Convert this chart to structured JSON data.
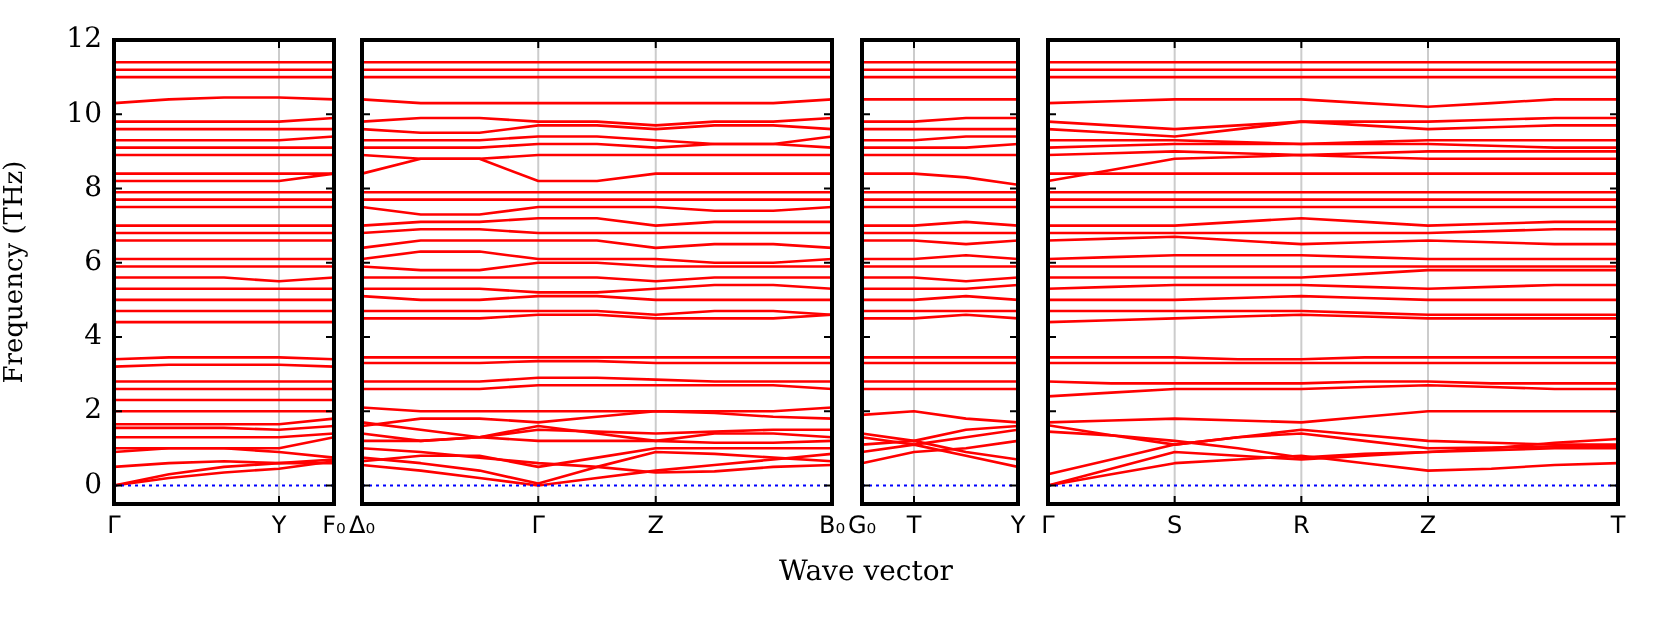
{
  "chart_data": [
    {
      "type": "line",
      "ylabel": "Frequency (THz)",
      "color": "#ff0000",
      "marker": "none",
      "line_style": "solid",
      "legend": false,
      "categories": [
        "Γ",
        null,
        null,
        "Y",
        "F₀"
      ],
      "ylim": [
        -0.5,
        12
      ],
      "yticks": [
        0,
        2,
        4,
        6,
        8,
        10,
        12
      ],
      "ref_lines": [
        {
          "axis": "y",
          "value": 0,
          "color": "#0000ff",
          "line_style": "dotted"
        },
        {
          "axis": "x",
          "value": "Y",
          "color": "#cccccc",
          "line_style": "solid"
        }
      ],
      "series": [
        {
          "values": [
            0,
            0.2,
            0.35,
            0.45,
            0.65
          ]
        },
        {
          "values": [
            0,
            0.3,
            0.5,
            0.6,
            0.7
          ]
        },
        {
          "values": [
            0.5,
            0.6,
            0.65,
            0.6,
            0.6
          ]
        },
        {
          "values": [
            0.9,
            1.0,
            1.0,
            0.9,
            0.75
          ]
        },
        {
          "values": [
            1.0,
            1.0,
            1.0,
            1.0,
            1.3
          ]
        },
        {
          "values": [
            1.3,
            1.3,
            1.3,
            1.3,
            1.4
          ]
        },
        {
          "values": [
            1.55,
            1.55,
            1.55,
            1.5,
            1.6
          ]
        },
        {
          "values": [
            1.65,
            1.65,
            1.65,
            1.65,
            1.8
          ]
        },
        {
          "values": [
            2.0,
            2.0,
            2.0,
            2.0,
            2.0
          ]
        },
        {
          "values": [
            2.3,
            2.3,
            2.3,
            2.3,
            2.3
          ]
        },
        {
          "values": [
            2.6,
            2.6,
            2.6,
            2.6,
            2.6
          ]
        },
        {
          "values": [
            2.8,
            2.8,
            2.8,
            2.8,
            2.8
          ]
        },
        {
          "values": [
            3.2,
            3.25,
            3.25,
            3.25,
            3.2
          ]
        },
        {
          "values": [
            3.4,
            3.45,
            3.45,
            3.45,
            3.4
          ]
        },
        {
          "values": [
            4.4,
            4.4,
            4.4,
            4.4,
            4.4
          ]
        },
        {
          "values": [
            4.7,
            4.7,
            4.7,
            4.7,
            4.7
          ]
        },
        {
          "values": [
            5.0,
            5.0,
            5.0,
            5.0,
            5.0
          ]
        },
        {
          "values": [
            5.3,
            5.3,
            5.3,
            5.3,
            5.3
          ]
        },
        {
          "values": [
            5.6,
            5.6,
            5.6,
            5.5,
            5.6
          ]
        },
        {
          "values": [
            5.9,
            5.9,
            5.9,
            5.9,
            5.9
          ]
        },
        {
          "values": [
            6.1,
            6.1,
            6.1,
            6.1,
            6.1
          ]
        },
        {
          "values": [
            6.6,
            6.6,
            6.6,
            6.6,
            6.6
          ]
        },
        {
          "values": [
            6.8,
            6.8,
            6.8,
            6.8,
            6.8
          ]
        },
        {
          "values": [
            7.0,
            7.0,
            7.0,
            7.0,
            7.0
          ]
        },
        {
          "values": [
            7.5,
            7.5,
            7.5,
            7.5,
            7.5
          ]
        },
        {
          "values": [
            7.7,
            7.7,
            7.7,
            7.7,
            7.7
          ]
        },
        {
          "values": [
            7.9,
            7.9,
            7.9,
            7.9,
            7.9
          ]
        },
        {
          "values": [
            8.2,
            8.2,
            8.2,
            8.2,
            8.4
          ]
        },
        {
          "values": [
            8.4,
            8.4,
            8.4,
            8.4,
            8.4
          ]
        },
        {
          "values": [
            8.9,
            8.9,
            8.9,
            8.9,
            8.9
          ]
        },
        {
          "values": [
            9.1,
            9.1,
            9.1,
            9.1,
            9.1
          ]
        },
        {
          "values": [
            9.3,
            9.3,
            9.3,
            9.3,
            9.4
          ]
        },
        {
          "values": [
            9.6,
            9.6,
            9.6,
            9.6,
            9.6
          ]
        },
        {
          "values": [
            9.8,
            9.8,
            9.8,
            9.8,
            9.9
          ]
        },
        {
          "values": [
            10.3,
            10.4,
            10.45,
            10.45,
            10.4
          ]
        },
        {
          "values": [
            11.0,
            11.0,
            11.0,
            11.0,
            11.0
          ]
        },
        {
          "values": [
            11.2,
            11.2,
            11.2,
            11.2,
            11.2
          ]
        },
        {
          "values": [
            11.4,
            11.4,
            11.4,
            11.4,
            11.4
          ]
        }
      ]
    },
    {
      "type": "line",
      "color": "#ff0000",
      "marker": "none",
      "line_style": "solid",
      "legend": false,
      "tick_labels": "x",
      "categories": [
        "Δ₀",
        null,
        null,
        "Γ",
        null,
        "Z",
        null,
        null,
        "B₀"
      ],
      "ylim": [
        -0.5,
        12
      ],
      "yticks": [
        0,
        2,
        4,
        6,
        8,
        10,
        12
      ],
      "ref_lines": [
        {
          "axis": "y",
          "value": 0,
          "color": "#0000ff",
          "line_style": "dotted"
        },
        {
          "axis": "x",
          "value": "Γ",
          "color": "#cccccc",
          "line_style": "solid"
        },
        {
          "axis": "x",
          "value": "Z",
          "color": "#cccccc",
          "line_style": "solid"
        }
      ],
      "series": [
        {
          "values": [
            0.55,
            0.4,
            0.2,
            0,
            0.2,
            0.4,
            0.55,
            0.7,
            0.85
          ]
        },
        {
          "values": [
            0.75,
            0.6,
            0.4,
            0.05,
            0.5,
            0.9,
            0.85,
            0.75,
            0.65
          ]
        },
        {
          "values": [
            0.65,
            0.8,
            0.8,
            0.5,
            0.75,
            1.0,
            1.0,
            1.0,
            1.0
          ]
        },
        {
          "values": [
            1.0,
            0.9,
            0.75,
            0.6,
            0.5,
            0.35,
            0.38,
            0.5,
            0.55
          ]
        },
        {
          "values": [
            1.4,
            1.2,
            1.3,
            1.6,
            1.4,
            1.2,
            1.4,
            1.4,
            1.3
          ]
        },
        {
          "values": [
            1.2,
            1.2,
            1.3,
            1.5,
            1.45,
            1.4,
            1.45,
            1.5,
            1.5
          ]
        },
        {
          "values": [
            1.7,
            1.5,
            1.3,
            1.2,
            1.2,
            1.2,
            1.15,
            1.15,
            1.2
          ]
        },
        {
          "values": [
            1.6,
            1.8,
            1.8,
            1.7,
            1.85,
            2.0,
            1.95,
            1.85,
            1.8
          ]
        },
        {
          "values": [
            2.1,
            2.0,
            2.0,
            2.0,
            2.0,
            2.0,
            2.0,
            2.0,
            2.1
          ]
        },
        {
          "values": [
            2.6,
            2.6,
            2.6,
            2.7,
            2.7,
            2.7,
            2.7,
            2.7,
            2.6
          ]
        },
        {
          "values": [
            2.8,
            2.8,
            2.8,
            2.9,
            2.9,
            2.85,
            2.8,
            2.8,
            2.8
          ]
        },
        {
          "values": [
            3.3,
            3.3,
            3.3,
            3.35,
            3.35,
            3.3,
            3.3,
            3.3,
            3.3
          ]
        },
        {
          "values": [
            3.45,
            3.45,
            3.45,
            3.45,
            3.45,
            3.45,
            3.45,
            3.45,
            3.45
          ]
        },
        {
          "values": [
            4.5,
            4.5,
            4.5,
            4.6,
            4.6,
            4.5,
            4.5,
            4.5,
            4.6
          ]
        },
        {
          "values": [
            4.7,
            4.7,
            4.7,
            4.7,
            4.7,
            4.6,
            4.7,
            4.7,
            4.6
          ]
        },
        {
          "values": [
            5.1,
            5.0,
            5.0,
            5.1,
            5.1,
            5.0,
            5.0,
            5.0,
            5.0
          ]
        },
        {
          "values": [
            5.3,
            5.3,
            5.3,
            5.2,
            5.2,
            5.3,
            5.4,
            5.4,
            5.3
          ]
        },
        {
          "values": [
            5.6,
            5.6,
            5.6,
            5.6,
            5.6,
            5.5,
            5.6,
            5.6,
            5.6
          ]
        },
        {
          "values": [
            5.9,
            5.8,
            5.8,
            6.0,
            6.0,
            5.9,
            5.9,
            5.9,
            5.9
          ]
        },
        {
          "values": [
            6.1,
            6.3,
            6.3,
            6.1,
            6.1,
            6.1,
            6.0,
            6.0,
            6.1
          ]
        },
        {
          "values": [
            6.4,
            6.6,
            6.6,
            6.6,
            6.6,
            6.4,
            6.5,
            6.5,
            6.4
          ]
        },
        {
          "values": [
            6.8,
            6.9,
            6.9,
            6.8,
            6.8,
            6.8,
            6.8,
            6.8,
            6.8
          ]
        },
        {
          "values": [
            7.0,
            7.1,
            7.1,
            7.2,
            7.2,
            7.0,
            7.1,
            7.1,
            7.1
          ]
        },
        {
          "values": [
            7.5,
            7.3,
            7.3,
            7.5,
            7.5,
            7.5,
            7.4,
            7.4,
            7.5
          ]
        },
        {
          "values": [
            7.7,
            7.7,
            7.7,
            7.7,
            7.7,
            7.7,
            7.7,
            7.7,
            7.7
          ]
        },
        {
          "values": [
            7.9,
            7.9,
            7.9,
            7.9,
            7.9,
            7.9,
            7.9,
            7.9,
            7.9
          ]
        },
        {
          "values": [
            8.4,
            8.8,
            8.8,
            8.2,
            8.2,
            8.4,
            8.4,
            8.4,
            8.4
          ]
        },
        {
          "values": [
            8.9,
            8.8,
            8.8,
            8.9,
            8.9,
            8.9,
            8.9,
            8.9,
            8.9
          ]
        },
        {
          "values": [
            9.1,
            9.1,
            9.1,
            9.2,
            9.2,
            9.1,
            9.2,
            9.2,
            9.1
          ]
        },
        {
          "values": [
            9.3,
            9.3,
            9.3,
            9.4,
            9.4,
            9.3,
            9.2,
            9.2,
            9.4
          ]
        },
        {
          "values": [
            9.6,
            9.5,
            9.5,
            9.7,
            9.7,
            9.6,
            9.7,
            9.7,
            9.6
          ]
        },
        {
          "values": [
            9.8,
            9.9,
            9.9,
            9.8,
            9.8,
            9.7,
            9.8,
            9.8,
            9.9
          ]
        },
        {
          "values": [
            10.4,
            10.3,
            10.3,
            10.3,
            10.3,
            10.3,
            10.3,
            10.3,
            10.4
          ]
        },
        {
          "values": [
            11.0,
            11.0,
            11.0,
            11.0,
            11.0,
            11.0,
            11.0,
            11.0,
            11.0
          ]
        },
        {
          "values": [
            11.2,
            11.2,
            11.2,
            11.2,
            11.2,
            11.2,
            11.2,
            11.2,
            11.2
          ]
        },
        {
          "values": [
            11.4,
            11.4,
            11.4,
            11.4,
            11.4,
            11.4,
            11.4,
            11.4,
            11.4
          ]
        }
      ]
    },
    {
      "type": "line",
      "xlabel": "Wave vector",
      "color": "#ff0000",
      "marker": "none",
      "line_style": "solid",
      "legend": false,
      "tick_labels": "x",
      "categories": [
        "G₀",
        "T",
        null,
        "Y"
      ],
      "ylim": [
        -0.5,
        12
      ],
      "yticks": [
        0,
        2,
        4,
        6,
        8,
        10,
        12
      ],
      "ref_lines": [
        {
          "axis": "y",
          "value": 0,
          "color": "#0000ff",
          "line_style": "dotted"
        },
        {
          "axis": "x",
          "value": "T",
          "color": "#cccccc",
          "line_style": "solid"
        }
      ],
      "series": [
        {
          "values": [
            0.9,
            1.1,
            0.8,
            0.5
          ]
        },
        {
          "values": [
            1.1,
            1.2,
            0.9,
            0.7
          ]
        },
        {
          "values": [
            1.3,
            1.1,
            1.3,
            1.5
          ]
        },
        {
          "values": [
            1.4,
            1.2,
            1.5,
            1.6
          ]
        },
        {
          "values": [
            0.6,
            0.9,
            1.0,
            1.2
          ]
        },
        {
          "values": [
            1.9,
            2.0,
            1.8,
            1.7
          ]
        },
        {
          "values": [
            2.6,
            2.6,
            2.6,
            2.6
          ]
        },
        {
          "values": [
            2.8,
            2.8,
            2.8,
            2.8
          ]
        },
        {
          "values": [
            3.3,
            3.3,
            3.3,
            3.3
          ]
        },
        {
          "values": [
            3.45,
            3.45,
            3.45,
            3.45
          ]
        },
        {
          "values": [
            4.5,
            4.5,
            4.6,
            4.5
          ]
        },
        {
          "values": [
            4.7,
            4.7,
            4.7,
            4.7
          ]
        },
        {
          "values": [
            5.0,
            5.0,
            5.1,
            5.0
          ]
        },
        {
          "values": [
            5.3,
            5.3,
            5.3,
            5.4
          ]
        },
        {
          "values": [
            5.6,
            5.6,
            5.5,
            5.6
          ]
        },
        {
          "values": [
            5.9,
            5.9,
            5.9,
            5.9
          ]
        },
        {
          "values": [
            6.1,
            6.1,
            6.2,
            6.1
          ]
        },
        {
          "values": [
            6.6,
            6.6,
            6.5,
            6.6
          ]
        },
        {
          "values": [
            6.8,
            6.8,
            6.8,
            6.8
          ]
        },
        {
          "values": [
            7.0,
            7.0,
            7.1,
            7.0
          ]
        },
        {
          "values": [
            7.5,
            7.5,
            7.5,
            7.5
          ]
        },
        {
          "values": [
            7.7,
            7.7,
            7.7,
            7.7
          ]
        },
        {
          "values": [
            7.9,
            7.9,
            7.9,
            7.9
          ]
        },
        {
          "values": [
            8.4,
            8.4,
            8.3,
            8.1
          ]
        },
        {
          "values": [
            8.9,
            8.9,
            8.9,
            8.9
          ]
        },
        {
          "values": [
            9.1,
            9.1,
            9.1,
            9.2
          ]
        },
        {
          "values": [
            9.3,
            9.3,
            9.4,
            9.4
          ]
        },
        {
          "values": [
            9.6,
            9.6,
            9.6,
            9.6
          ]
        },
        {
          "values": [
            9.8,
            9.8,
            9.9,
            9.9
          ]
        },
        {
          "values": [
            10.4,
            10.4,
            10.4,
            10.4
          ]
        },
        {
          "values": [
            11.0,
            11.0,
            11.0,
            11.0
          ]
        },
        {
          "values": [
            11.2,
            11.2,
            11.2,
            11.2
          ]
        },
        {
          "values": [
            11.4,
            11.4,
            11.4,
            11.4
          ]
        }
      ]
    },
    {
      "type": "line",
      "color": "#ff0000",
      "marker": "none",
      "line_style": "solid",
      "legend": false,
      "tick_labels": "x",
      "categories": [
        "Γ",
        null,
        "S",
        null,
        "R",
        null,
        "Z",
        null,
        null,
        "T"
      ],
      "ylim": [
        -0.5,
        12
      ],
      "yticks": [
        0,
        2,
        4,
        6,
        8,
        10,
        12
      ],
      "ref_lines": [
        {
          "axis": "y",
          "value": 0,
          "color": "#0000ff",
          "line_style": "dotted"
        },
        {
          "axis": "x",
          "value": "S",
          "color": "#cccccc",
          "line_style": "solid"
        },
        {
          "axis": "x",
          "value": "R",
          "color": "#cccccc",
          "line_style": "solid"
        },
        {
          "axis": "x",
          "value": "Z",
          "color": "#cccccc",
          "line_style": "solid"
        }
      ],
      "series": [
        {
          "values": [
            0,
            0.3,
            0.6,
            0.7,
            0.8,
            0.6,
            0.4,
            0.45,
            0.55,
            0.6
          ]
        },
        {
          "values": [
            0,
            0.45,
            0.9,
            0.8,
            0.7,
            0.8,
            0.9,
            0.95,
            1.0,
            1.0
          ]
        },
        {
          "values": [
            0.3,
            0.7,
            1.1,
            1.3,
            1.4,
            1.2,
            1.0,
            1.02,
            1.05,
            1.05
          ]
        },
        {
          "values": [
            1.45,
            1.35,
            1.2,
            1.0,
            0.75,
            0.85,
            0.9,
            1.0,
            1.15,
            1.25
          ]
        },
        {
          "values": [
            1.62,
            1.35,
            1.1,
            1.3,
            1.5,
            1.35,
            1.2,
            1.15,
            1.1,
            1.1
          ]
        },
        {
          "values": [
            1.7,
            1.75,
            1.8,
            1.75,
            1.7,
            1.85,
            2.0,
            2.0,
            2.0,
            2.0
          ]
        },
        {
          "values": [
            2.4,
            2.5,
            2.6,
            2.6,
            2.6,
            2.65,
            2.7,
            2.65,
            2.6,
            2.6
          ]
        },
        {
          "values": [
            2.8,
            2.75,
            2.75,
            2.75,
            2.75,
            2.8,
            2.8,
            2.75,
            2.75,
            2.75
          ]
        },
        {
          "values": [
            3.3,
            3.3,
            3.3,
            3.3,
            3.3,
            3.3,
            3.3,
            3.3,
            3.3,
            3.3
          ]
        },
        {
          "values": [
            3.45,
            3.45,
            3.45,
            3.4,
            3.4,
            3.45,
            3.45,
            3.45,
            3.45,
            3.45
          ]
        },
        {
          "values": [
            4.4,
            4.45,
            4.5,
            4.55,
            4.6,
            4.55,
            4.5,
            4.5,
            4.5,
            4.5
          ]
        },
        {
          "values": [
            4.7,
            4.7,
            4.7,
            4.7,
            4.7,
            4.65,
            4.6,
            4.6,
            4.6,
            4.6
          ]
        },
        {
          "values": [
            5.0,
            5.0,
            5.0,
            5.05,
            5.1,
            5.05,
            5.0,
            5.0,
            5.0,
            5.0
          ]
        },
        {
          "values": [
            5.3,
            5.35,
            5.4,
            5.4,
            5.4,
            5.35,
            5.3,
            5.35,
            5.4,
            5.4
          ]
        },
        {
          "values": [
            5.6,
            5.6,
            5.6,
            5.6,
            5.6,
            5.7,
            5.8,
            5.8,
            5.8,
            5.8
          ]
        },
        {
          "values": [
            5.9,
            5.9,
            5.9,
            5.9,
            5.9,
            5.9,
            5.9,
            5.9,
            5.9,
            5.9
          ]
        },
        {
          "values": [
            6.1,
            6.15,
            6.2,
            6.2,
            6.2,
            6.15,
            6.1,
            6.1,
            6.1,
            6.1
          ]
        },
        {
          "values": [
            6.6,
            6.65,
            6.7,
            6.6,
            6.5,
            6.55,
            6.6,
            6.55,
            6.5,
            6.5
          ]
        },
        {
          "values": [
            6.8,
            6.8,
            6.8,
            6.8,
            6.8,
            6.8,
            6.8,
            6.85,
            6.9,
            6.9
          ]
        },
        {
          "values": [
            7.0,
            7.0,
            7.0,
            7.1,
            7.2,
            7.1,
            7.0,
            7.05,
            7.1,
            7.1
          ]
        },
        {
          "values": [
            7.5,
            7.5,
            7.5,
            7.5,
            7.5,
            7.5,
            7.5,
            7.5,
            7.5,
            7.5
          ]
        },
        {
          "values": [
            7.7,
            7.7,
            7.7,
            7.7,
            7.7,
            7.7,
            7.7,
            7.7,
            7.7,
            7.7
          ]
        },
        {
          "values": [
            7.9,
            7.9,
            7.9,
            7.9,
            7.9,
            7.9,
            7.9,
            7.9,
            7.9,
            7.9
          ]
        },
        {
          "values": [
            8.2,
            8.5,
            8.8,
            8.85,
            8.9,
            8.85,
            8.8,
            8.8,
            8.8,
            8.8
          ]
        },
        {
          "values": [
            8.4,
            8.4,
            8.4,
            8.4,
            8.4,
            8.4,
            8.4,
            8.4,
            8.4,
            8.4
          ]
        },
        {
          "values": [
            8.9,
            8.95,
            9.0,
            8.95,
            8.9,
            8.95,
            9.0,
            9.0,
            9.0,
            9.0
          ]
        },
        {
          "values": [
            9.1,
            9.15,
            9.2,
            9.2,
            9.2,
            9.2,
            9.2,
            9.15,
            9.1,
            9.1
          ]
        },
        {
          "values": [
            9.3,
            9.3,
            9.3,
            9.25,
            9.2,
            9.25,
            9.3,
            9.3,
            9.3,
            9.3
          ]
        },
        {
          "values": [
            9.6,
            9.5,
            9.4,
            9.6,
            9.8,
            9.7,
            9.6,
            9.65,
            9.7,
            9.7
          ]
        },
        {
          "values": [
            9.8,
            9.7,
            9.6,
            9.7,
            9.8,
            9.8,
            9.8,
            9.85,
            9.9,
            9.9
          ]
        },
        {
          "values": [
            10.3,
            10.35,
            10.4,
            10.4,
            10.4,
            10.3,
            10.2,
            10.3,
            10.4,
            10.4
          ]
        },
        {
          "values": [
            11.0,
            11.0,
            11.0,
            11.0,
            11.0,
            11.0,
            11.0,
            11.0,
            11.0,
            11.0
          ]
        },
        {
          "values": [
            11.2,
            11.2,
            11.2,
            11.2,
            11.2,
            11.2,
            11.2,
            11.2,
            11.2,
            11.2
          ]
        },
        {
          "values": [
            11.4,
            11.4,
            11.4,
            11.4,
            11.4,
            11.4,
            11.4,
            11.4,
            11.4,
            11.4
          ]
        }
      ]
    }
  ]
}
